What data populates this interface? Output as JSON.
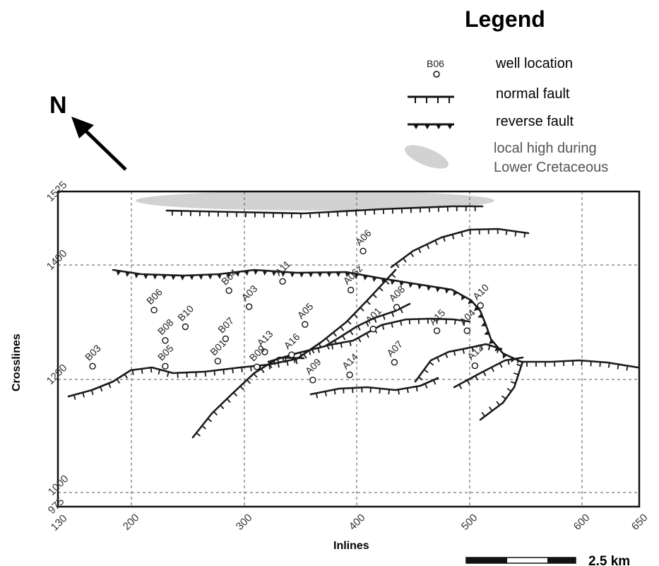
{
  "legend": {
    "title": "Legend",
    "items": [
      {
        "name": "well-location",
        "symbol_label": "B06",
        "label": "well location"
      },
      {
        "name": "normal-fault",
        "label": "normal fault"
      },
      {
        "name": "reverse-fault",
        "label": "reverse fault"
      },
      {
        "name": "local-high",
        "label_line1": "local high during",
        "label_line2": "Lower Cretaceous"
      }
    ]
  },
  "north_arrow": {
    "label": "N"
  },
  "axes": {
    "x_title": "Inlines",
    "y_title": "Crosslines",
    "x_range": [
      130,
      650
    ],
    "y_range": [
      975,
      1525
    ],
    "x_ticks": [
      "130",
      "200",
      "300",
      "400",
      "500",
      "600",
      "650"
    ],
    "y_ticks": [
      "975",
      "1000",
      "1200",
      "1400",
      "1525"
    ]
  },
  "scale_bar": {
    "label": "2.5 km"
  },
  "wells": [
    {
      "id": "A06",
      "x": 403,
      "y": 1421
    },
    {
      "id": "A11",
      "x": 331,
      "y": 1368
    },
    {
      "id": "B04",
      "x": 283,
      "y": 1352
    },
    {
      "id": "A06z",
      "x": 392,
      "y": 1353
    },
    {
      "id": "B06",
      "x": 216,
      "y": 1318
    },
    {
      "id": "A03",
      "x": 301,
      "y": 1324
    },
    {
      "id": "A08",
      "x": 433,
      "y": 1323
    },
    {
      "id": "A10",
      "x": 508,
      "y": 1326
    },
    {
      "id": "B10",
      "x": 244,
      "y": 1289
    },
    {
      "id": "A05",
      "x": 351,
      "y": 1293
    },
    {
      "id": "A01",
      "x": 412,
      "y": 1285
    },
    {
      "id": "A15",
      "x": 469,
      "y": 1282
    },
    {
      "id": "B08",
      "x": 226,
      "y": 1265
    },
    {
      "id": "B07",
      "x": 280,
      "y": 1268
    },
    {
      "id": "A04",
      "x": 496,
      "y": 1282
    },
    {
      "id": "A13",
      "x": 315,
      "y": 1245
    },
    {
      "id": "A16",
      "x": 339,
      "y": 1240
    },
    {
      "id": "B03",
      "x": 161,
      "y": 1220
    },
    {
      "id": "B05",
      "x": 226,
      "y": 1220
    },
    {
      "id": "B01",
      "x": 273,
      "y": 1229
    },
    {
      "id": "B09",
      "x": 308,
      "y": 1219
    },
    {
      "id": "A07",
      "x": 431,
      "y": 1227
    },
    {
      "id": "A12",
      "x": 503,
      "y": 1221
    },
    {
      "id": "A14",
      "x": 391,
      "y": 1205
    },
    {
      "id": "A09",
      "x": 358,
      "y": 1196
    }
  ],
  "colors": {
    "fault": "#1a1a1a",
    "local_high": "#d2d2d2",
    "grid": "#555555"
  }
}
